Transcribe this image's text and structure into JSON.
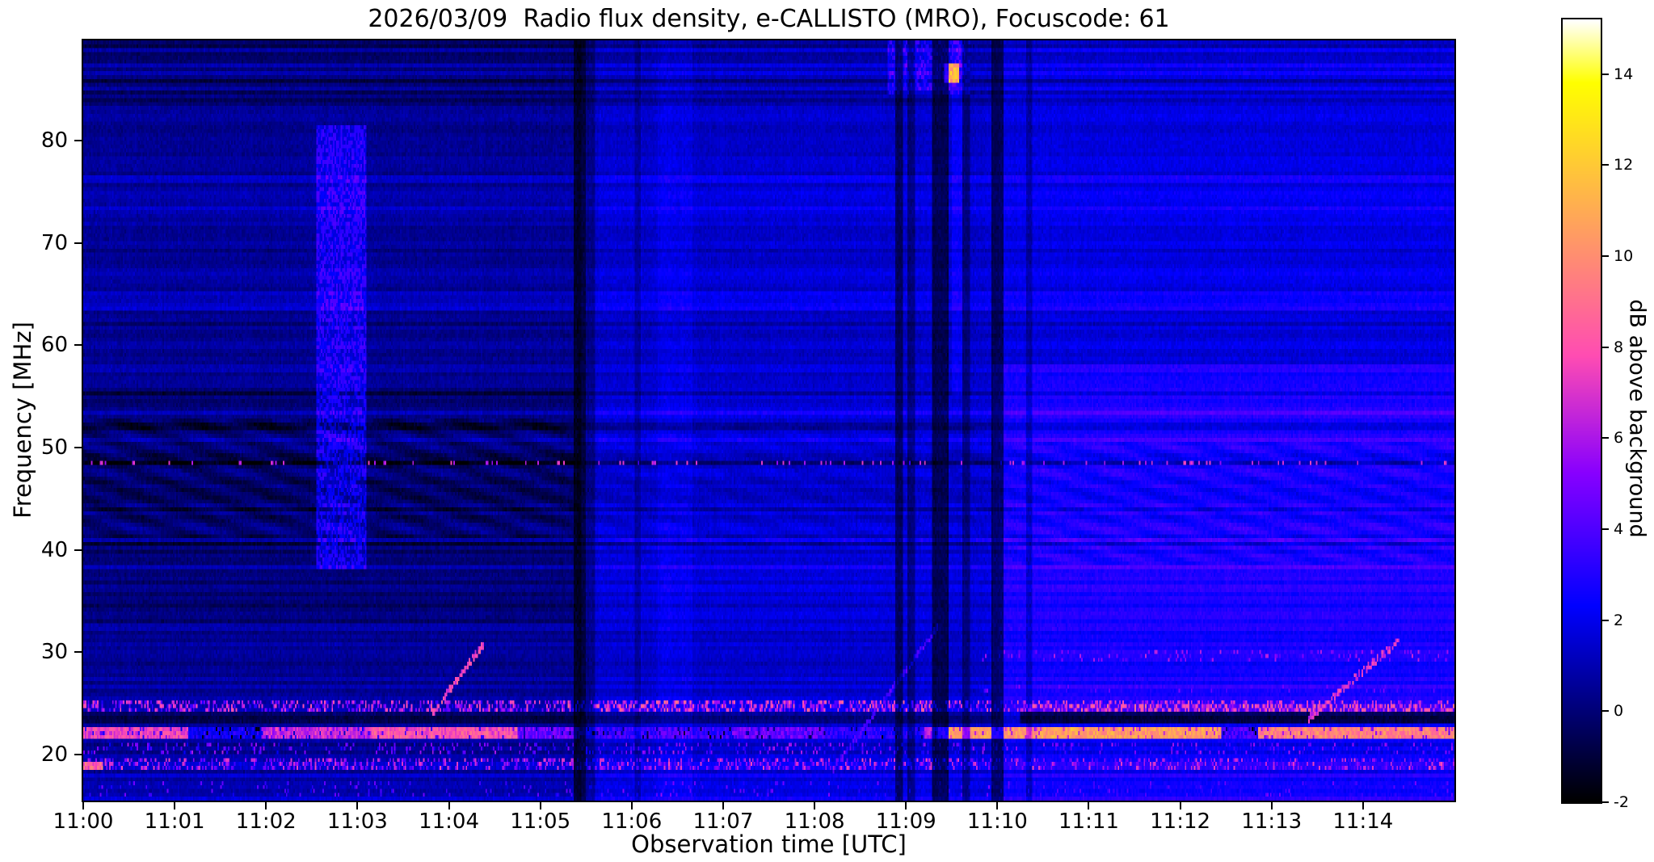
{
  "chart_data": {
    "type": "heatmap",
    "title": "2026/03/09  Radio flux density, e-CALLISTO (MRO), Focuscode: 61",
    "xlabel": "Observation time [UTC]",
    "ylabel": "Frequency [MHz]",
    "x_tick_labels": [
      "11:00",
      "11:01",
      "11:02",
      "11:03",
      "11:04",
      "11:05",
      "11:06",
      "11:07",
      "11:08",
      "11:09",
      "11:10",
      "11:11",
      "11:12",
      "11:13",
      "11:14"
    ],
    "x_range_min": [
      0,
      15
    ],
    "y_ticks": [
      20,
      30,
      40,
      50,
      60,
      70,
      80
    ],
    "y_range_mhz": [
      15.5,
      89.8
    ],
    "colorbar": {
      "label": "dB above background",
      "ticks": [
        -2,
        0,
        2,
        4,
        6,
        8,
        10,
        12,
        14
      ],
      "vmin": -2,
      "vmax": 15.2,
      "colormap": "gnuplot2"
    },
    "description": "Solar radio spectrogram, quiet blue background with RFI: bright orange/yellow bands near 19-25 MHz, dashed interference line near 48.5 MHz, dark dropout columns near 11:05.4 and 11:09-11:10, brighter blue after 11:10, dotted diagonal sweeps near 11:04, 11:08.7 and 11:13.9, bright speckled column 11:02.6-11:03.1 between 38-81 MHz, noisy patch with bright pink spot near 86 MHz at 11:09.5",
    "render": {
      "seed": 20260309,
      "cols": 900,
      "rows": 197,
      "base": 0.9,
      "row_noise_amp": 0.45,
      "pixel_noise_amp": 0.5,
      "base_regions": [
        {
          "t": [
            0,
            5.45
          ],
          "f": [
            15.5,
            89.8
          ],
          "add": -0.35
        },
        {
          "t": [
            0,
            5.45
          ],
          "f": [
            33,
            56
          ],
          "add": -0.75
        },
        {
          "t": [
            5.45,
            9.95
          ],
          "f": [
            15.5,
            89.8
          ],
          "add": 0.55
        },
        {
          "t": [
            9.95,
            15
          ],
          "f": [
            15.5,
            89.8
          ],
          "add": 1.25
        },
        {
          "t": [
            9.95,
            15
          ],
          "f": [
            23,
            58
          ],
          "add": 0.55
        },
        {
          "t": [
            9.95,
            15
          ],
          "f": [
            58,
            83.5
          ],
          "add": -0.3
        },
        {
          "t": [
            0,
            15
          ],
          "f": [
            83.5,
            89.8
          ],
          "add": -0.8
        },
        {
          "t": [
            0,
            15
          ],
          "f": [
            15.5,
            17.5
          ],
          "add": 0.2
        }
      ],
      "h_lines": [
        {
          "f": 76.3,
          "hw": 0.3,
          "add": 0.5
        },
        {
          "f": 65.0,
          "hw": 0.3,
          "add": 0.45
        },
        {
          "f": 57.9,
          "hw": 0.25,
          "add": 0.4
        },
        {
          "f": 36.3,
          "hw": 0.25,
          "add": 0.35
        },
        {
          "f": 85.0,
          "hw": 0.25,
          "add": 0.5
        },
        {
          "f": 88.9,
          "hw": 0.3,
          "add": 0.6
        },
        {
          "f": 81.7,
          "hw": 0.3,
          "add": -0.5
        },
        {
          "f": 84.0,
          "hw": 0.25,
          "add": -0.5
        },
        {
          "f": 27.6,
          "hw": 0.2,
          "add": 0.25
        }
      ],
      "ripples": [
        {
          "t": [
            0,
            5.45
          ],
          "f": [
            41,
            53
          ],
          "amp": 0.55,
          "tf": 1.35,
          "ff": 0.45
        },
        {
          "t": [
            9.95,
            15
          ],
          "f": [
            38.5,
            50.5
          ],
          "amp": 0.5,
          "tf": 1.3,
          "ff": 0.5
        },
        {
          "t": [
            5.45,
            9.95
          ],
          "f": [
            40,
            52
          ],
          "amp": 0.25,
          "tf": 1.3,
          "ff": 0.45
        }
      ],
      "speckle_bands": [
        {
          "t": [
            0,
            15
          ],
          "f": [
            24.3,
            25.4
          ],
          "add": 0.2,
          "p": 0.4,
          "lo": 3,
          "hi": 8
        },
        {
          "t": [
            10.3,
            15
          ],
          "f": [
            24.3,
            25.1
          ],
          "add": 0.5,
          "p": 0.25,
          "lo": 6,
          "hi": 9
        },
        {
          "t": [
            5.3,
            9.3
          ],
          "f": [
            24.3,
            25.4
          ],
          "add": 0.3,
          "p": 0.2,
          "lo": 5,
          "hi": 9
        },
        {
          "t": [
            0,
            15
          ],
          "f": [
            18.5,
            19.6
          ],
          "add": 0.6,
          "p": 0.38,
          "lo": 3,
          "hi": 7.5
        },
        {
          "t": [
            0,
            15
          ],
          "f": [
            20.2,
            21.2
          ],
          "add": -0.3,
          "p": 0.15,
          "lo": 2.5,
          "hi": 6
        },
        {
          "t": [
            9.8,
            15
          ],
          "f": [
            29.2,
            30.3
          ],
          "add": 0.3,
          "p": 0.1,
          "lo": 3.5,
          "hi": 6.5
        },
        {
          "t": [
            9.8,
            15
          ],
          "f": [
            26.0,
            26.8
          ],
          "add": 0.3,
          "p": 0.08,
          "lo": 3,
          "hi": 5
        },
        {
          "t": [
            0,
            15
          ],
          "f": [
            15.8,
            17.2
          ],
          "add": 0.1,
          "p": 0.06,
          "lo": 2.5,
          "hi": 5
        }
      ],
      "dark_bands": [
        {
          "t": [
            0,
            15
          ],
          "f": [
            22.9,
            24.15
          ],
          "add": -1.3
        },
        {
          "t": [
            10.25,
            15
          ],
          "f": [
            23.05,
            24.0
          ],
          "add": -2.3
        }
      ],
      "bright_band": {
        "f": [
          21.35,
          22.55
        ],
        "segments": [
          [
            0,
            1.15,
            7.5
          ],
          [
            1.15,
            1.95,
            2.5
          ],
          [
            1.95,
            3.15,
            6.5
          ],
          [
            3.15,
            4.75,
            8
          ],
          [
            4.75,
            5.45,
            4.5
          ],
          [
            5.45,
            7.1,
            3.5
          ],
          [
            7.1,
            8.1,
            4.5
          ],
          [
            8.1,
            9.2,
            3
          ],
          [
            9.2,
            9.35,
            6
          ],
          [
            9.35,
            12.45,
            10.5
          ],
          [
            12.45,
            12.85,
            3.5
          ],
          [
            12.85,
            15,
            9.5
          ]
        ]
      },
      "dashed_line": {
        "f": 48.45,
        "hw": 0.25,
        "add": -2.0,
        "p": 0.1,
        "spike": 5.5
      },
      "diagonals": [
        {
          "t0": 3.8,
          "t1": 4.38,
          "f0": 23.8,
          "f1": 30.8,
          "hw": 0.35,
          "val": 7,
          "p": 0.75
        },
        {
          "t0": 8.2,
          "t1": 9.35,
          "f0": 18.5,
          "f1": 32.5,
          "hw": 0.3,
          "val": 3.2,
          "p": 0.85
        },
        {
          "t0": 13.4,
          "t1": 14.4,
          "f0": 23.5,
          "f1": 31.2,
          "hw": 0.35,
          "val": 6.5,
          "p": 0.7
        }
      ],
      "v_bright": [
        {
          "t": [
            2.55,
            3.1
          ],
          "f": [
            38,
            81.5
          ],
          "add": 1.3,
          "p": 0.5,
          "spike": 1.6
        },
        {
          "t": [
            6.28,
            6.67
          ],
          "f": [
            15.5,
            89.8
          ],
          "add": 0.45,
          "p": 0,
          "spike": 0
        },
        {
          "t": [
            8.8,
            9.7
          ],
          "f": [
            84.5,
            89.8
          ],
          "add": 1.2,
          "p": 0.3,
          "spike": 1.5
        },
        {
          "t": [
            9.5,
            9.62
          ],
          "f": [
            55,
            89.8
          ],
          "add": 0.8,
          "p": 0,
          "spike": 0
        }
      ],
      "blobs": [
        {
          "t": [
            9.42,
            9.58
          ],
          "f": [
            85.8,
            87.4
          ],
          "val": 11
        },
        {
          "t": [
            0,
            0.22
          ],
          "f": [
            18.5,
            19.4
          ],
          "val": 8.5
        }
      ],
      "v_dark": [
        {
          "t": [
            5.37,
            5.5
          ],
          "mult": 0.3
        },
        {
          "t": [
            5.5,
            5.6
          ],
          "mult": 0.65
        },
        {
          "t": [
            6.03,
            6.1
          ],
          "mult": 0.75
        },
        {
          "t": [
            8.88,
            8.97
          ],
          "mult": 0.45
        },
        {
          "t": [
            9.02,
            9.1
          ],
          "mult": 0.6
        },
        {
          "t": [
            9.28,
            9.47
          ],
          "mult": 0.4
        },
        {
          "t": [
            9.62,
            9.7
          ],
          "mult": 0.6
        },
        {
          "t": [
            9.93,
            10.06
          ],
          "mult": 0.4
        },
        {
          "t": [
            10.32,
            10.38
          ],
          "mult": 0.7
        }
      ]
    }
  }
}
